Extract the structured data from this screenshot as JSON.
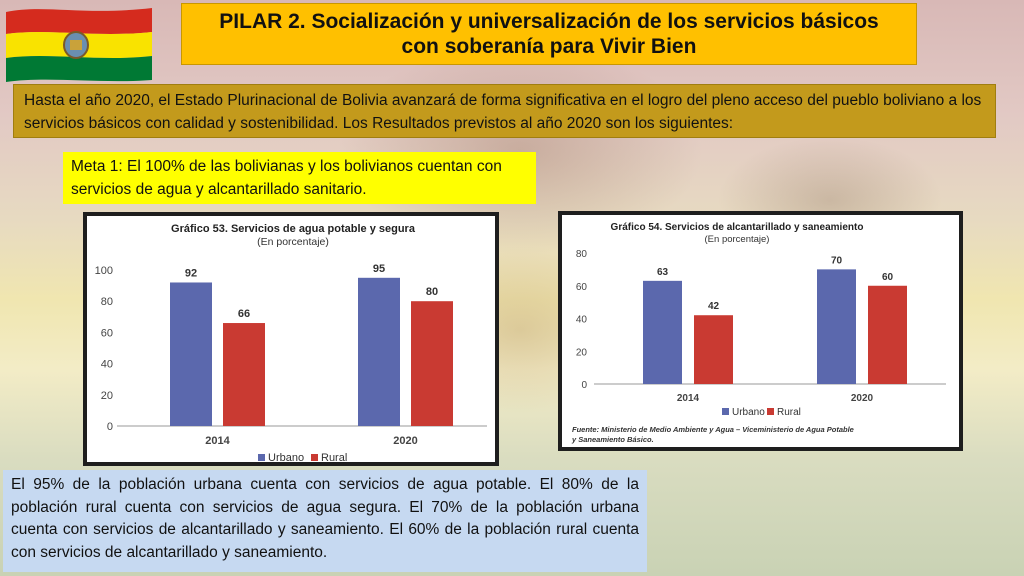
{
  "slide": {
    "title": "PILAR 2. Socialización y universalización de los servicios básicos con soberanía para Vivir Bien",
    "intro": "Hasta el año 2020, el Estado Plurinacional de Bolivia avanzará de forma significativa en el logro del pleno acceso del pueblo boliviano a los servicios básicos con calidad y sostenibilidad. Los Resultados previstos al año 2020 son los siguientes:",
    "meta": "Meta 1: El 100% de las bolivianas y los bolivianos cuentan con servicios de agua y alcantarillado sanitario.",
    "summary": "El 95% de la población urbana cuenta con servicios de agua potable. El 80% de la población rural cuenta con servicios de agua segura. El 70% de la población urbana cuenta con servicios de alcantarillado y saneamiento. El 60% de la población rural cuenta con servicios de alcantarillado y saneamiento."
  },
  "colors": {
    "urbano": "#5b68ad",
    "rural": "#c93a32",
    "title_box": "#ffc000",
    "intro_box": "#c39a1c",
    "meta_box": "#ffff00",
    "summary_box": "#c6d9f1"
  },
  "chart_data": [
    {
      "type": "bar",
      "title": "Gráfico 53. Servicios de agua potable y segura",
      "subtitle": "(En porcentaje)",
      "categories": [
        "2014",
        "2020"
      ],
      "series": [
        {
          "name": "Urbano",
          "values": [
            92,
            95
          ]
        },
        {
          "name": "Rural",
          "values": [
            66,
            80
          ]
        }
      ],
      "ylim": [
        0,
        100
      ],
      "yticks": [
        0,
        20,
        40,
        60,
        80,
        100
      ],
      "grid": false,
      "legend": "bottom",
      "source": ""
    },
    {
      "type": "bar",
      "title": "Gráfico 54. Servicios de alcantarillado y saneamiento",
      "subtitle": "(En porcentaje)",
      "categories": [
        "2014",
        "2020"
      ],
      "series": [
        {
          "name": "Urbano",
          "values": [
            63,
            70
          ]
        },
        {
          "name": "Rural",
          "values": [
            42,
            60
          ]
        }
      ],
      "ylim": [
        0,
        80
      ],
      "yticks": [
        0,
        20,
        40,
        60,
        80
      ],
      "grid": false,
      "legend": "bottom",
      "source": "Fuente: Ministerio de Medio Ambiente y Agua – Viceministerio de Agua Potable y Saneamiento Básico."
    }
  ]
}
